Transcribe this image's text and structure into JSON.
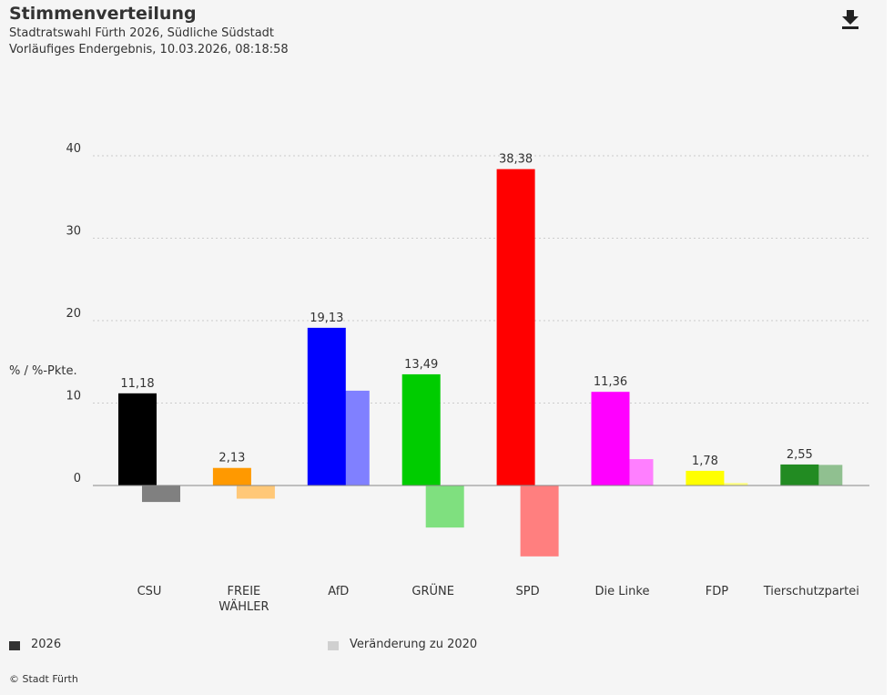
{
  "header": {
    "title": "Stimmenverteilung",
    "subtitle_line1": "Stadtratswahl Fürth 2026, Südliche Südstadt",
    "subtitle_line2": "Vorläufiges Endergebnis, 10.03.2026, 08:18:58"
  },
  "toolbar": {
    "download_icon": "download-icon"
  },
  "chart_data": {
    "type": "bar",
    "ylabel": "% / %-Pkte.",
    "ylim": [
      -10,
      40
    ],
    "yticks": [
      "0",
      "10",
      "20",
      "30",
      "40"
    ],
    "categories": [
      "CSU",
      "FREIE WÄHLER",
      "AfD",
      "GRÜNE",
      "SPD",
      "Die Linke",
      "FDP",
      "Tierschutzpartei"
    ],
    "category_lines": [
      [
        "CSU"
      ],
      [
        "FREIE",
        "WÄHLER"
      ],
      [
        "AfD"
      ],
      [
        "GRÜNE"
      ],
      [
        "SPD"
      ],
      [
        "Die Linke"
      ],
      [
        "FDP"
      ],
      [
        "Tierschutzpartei"
      ]
    ],
    "series": [
      {
        "name": "2026",
        "values": [
          11.18,
          2.13,
          19.13,
          13.49,
          38.38,
          11.36,
          1.78,
          2.55
        ],
        "labels": [
          "11,18",
          "2,13",
          "19,13",
          "13,49",
          "38,38",
          "11,36",
          "1,78",
          "2,55"
        ]
      },
      {
        "name": "Veränderung zu 2020",
        "values": [
          -2.0,
          -1.6,
          11.5,
          -5.1,
          -8.6,
          3.2,
          0.3,
          2.5
        ]
      }
    ],
    "colors_main": [
      "#000000",
      "#ff9900",
      "#0000ff",
      "#00cc00",
      "#ff0000",
      "#ff00ff",
      "#ffff00",
      "#228b22"
    ],
    "colors_change": [
      "#808080",
      "#ffc878",
      "#8080ff",
      "#7fe07f",
      "#ff7f7f",
      "#ff7fff",
      "#ffff80",
      "#90c090"
    ],
    "grid": true,
    "grid_style": "dotted"
  },
  "legend": {
    "items": [
      {
        "label": "2026",
        "color": "#333333"
      },
      {
        "label": "Veränderung zu 2020",
        "color": "#d0d0d0"
      }
    ]
  },
  "footer": {
    "credit": "© Stadt Fürth"
  }
}
